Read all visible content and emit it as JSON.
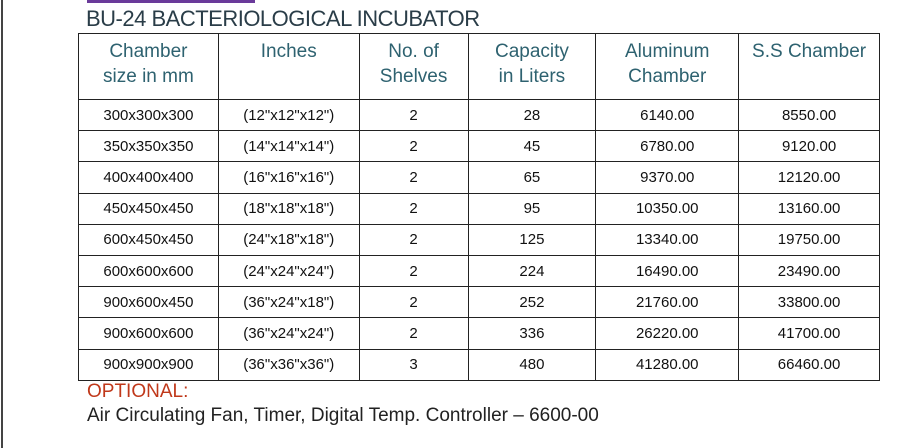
{
  "title": "BU-24 BACTERIOLOGICAL INCUBATOR",
  "headers": [
    "Chamber size in mm",
    "Inches",
    "No. of Shelves",
    "Capacity in Liters",
    "Aluminum Chamber",
    "S.S Chamber"
  ],
  "header_lines": [
    [
      "Chamber",
      "size in mm"
    ],
    [
      "Inches",
      ""
    ],
    [
      "No. of",
      "Shelves"
    ],
    [
      "Capacity",
      "in Liters"
    ],
    [
      "Aluminum",
      "Chamber"
    ],
    [
      "S.S Chamber",
      ""
    ]
  ],
  "rows": [
    [
      "300x300x300",
      "(12\"x12\"x12\")",
      "2",
      "28",
      "6140.00",
      "8550.00"
    ],
    [
      "350x350x350",
      "(14\"x14\"x14\")",
      "2",
      "45",
      "6780.00",
      "9120.00"
    ],
    [
      "400x400x400",
      "(16\"x16\"x16\")",
      "2",
      "65",
      "9370.00",
      "12120.00"
    ],
    [
      "450x450x450",
      "(18\"x18\"x18\")",
      "2",
      "95",
      "10350.00",
      "13160.00"
    ],
    [
      "600x450x450",
      "(24\"x18\"x18\")",
      "2",
      "125",
      "13340.00",
      "19750.00"
    ],
    [
      "600x600x600",
      "(24\"x24\"x24\")",
      "2",
      "224",
      "16490.00",
      "23490.00"
    ],
    [
      "900x600x450",
      "(36\"x24\"x18\")",
      "2",
      "252",
      "21760.00",
      "33800.00"
    ],
    [
      "900x600x600",
      "(36\"x24\"x24\")",
      "2",
      "336",
      "26220.00",
      "41700.00"
    ],
    [
      "900x900x900",
      "(36\"x36\"x36\")",
      "3",
      "480",
      "41280.00",
      "66460.00"
    ]
  ],
  "optional_label": "OPTIONAL:",
  "optional_text": "Air Circulating Fan, Timer, Digital Temp. Controller – 6600-00",
  "colors": {
    "header": "#2e6270",
    "optional": "#c0381a",
    "accent_bar": "#6a3a9a"
  }
}
